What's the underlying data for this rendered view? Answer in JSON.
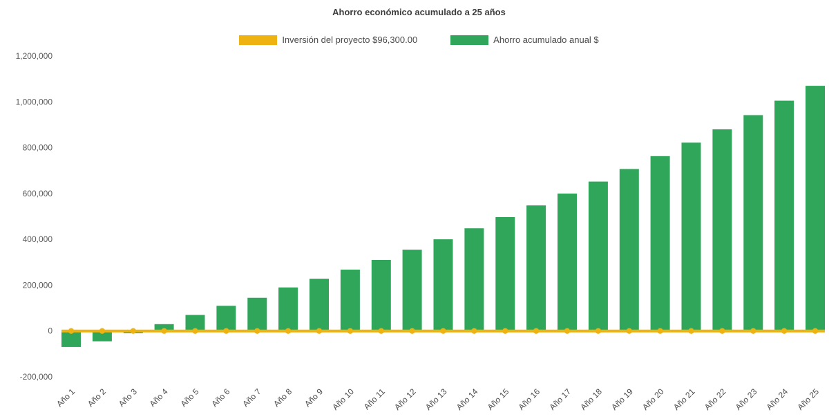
{
  "chart_data": {
    "type": "combo",
    "title": "Ahorro económico acumulado a 25 años",
    "categories": [
      "Año 1",
      "Año 2",
      "Año 3",
      "Año 4",
      "Año 5",
      "Año 6",
      "Año 7",
      "Año 8",
      "Año 9",
      "Año 10",
      "Año 11",
      "Año 12",
      "Año 13",
      "Año 14",
      "Año 15",
      "Año 16",
      "Año 17",
      "Año 18",
      "Año 19",
      "Año 20",
      "Año 21",
      "Año 22",
      "Año 23",
      "Año 24",
      "Año 25"
    ],
    "series": [
      {
        "name": "Inversión del proyecto $96,300.00",
        "type": "line",
        "color": "#eeb211",
        "values": [
          0,
          0,
          0,
          0,
          0,
          0,
          0,
          0,
          0,
          0,
          0,
          0,
          0,
          0,
          0,
          0,
          0,
          0,
          0,
          0,
          0,
          0,
          0,
          0,
          0
        ]
      },
      {
        "name": "Ahorro acumulado anual $",
        "type": "bar",
        "color": "#2fa65a",
        "values": [
          -70000,
          -45000,
          -10000,
          30000,
          70000,
          110000,
          145000,
          190000,
          228000,
          268000,
          310000,
          355000,
          400000,
          448000,
          497000,
          548000,
          600000,
          652000,
          707000,
          763000,
          822000,
          880000,
          942000,
          1005000,
          1070000
        ]
      }
    ],
    "ylim": [
      -200000,
      1200000
    ],
    "yticks": [
      -200000,
      0,
      200000,
      400000,
      600000,
      800000,
      1000000,
      1200000
    ],
    "ytick_labels": [
      "-200,000",
      "0",
      "200,000",
      "400,000",
      "600,000",
      "800,000",
      "1,000,000",
      "1,200,000"
    ],
    "grid": false,
    "legend_position": "top",
    "background": "#ffffff"
  }
}
